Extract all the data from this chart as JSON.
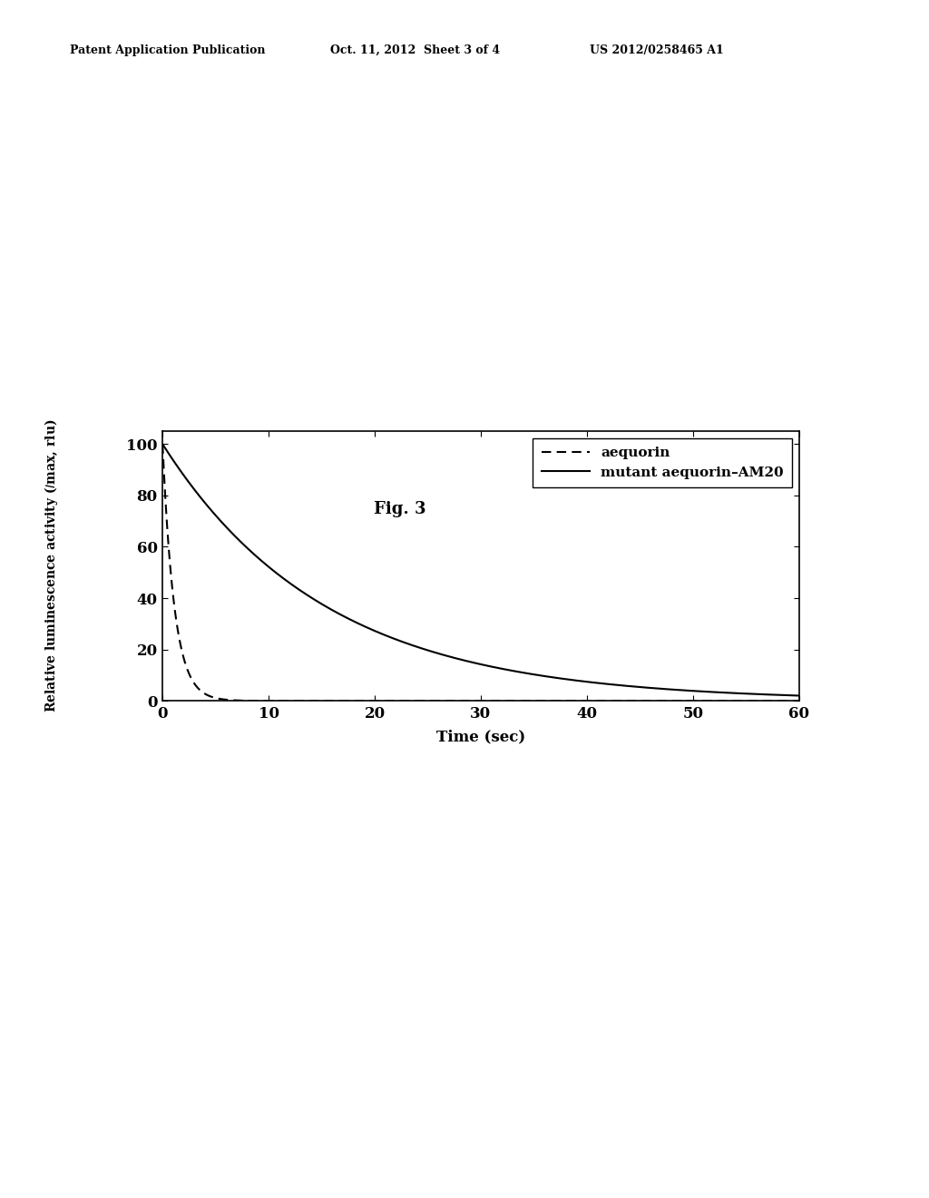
{
  "header_left": "Patent Application Publication",
  "header_mid": "Oct. 11, 2012  Sheet 3 of 4",
  "header_right": "US 2012/0258465 A1",
  "fig_label": "Fig. 3",
  "xlabel": "Time (sec)",
  "ylabel": "Relative luminescence activity (Imax, rlu)",
  "xlim": [
    0,
    60
  ],
  "ylim": [
    0,
    105
  ],
  "xticks": [
    0,
    10,
    20,
    30,
    40,
    50,
    60
  ],
  "yticks": [
    0,
    20,
    40,
    60,
    80,
    100
  ],
  "legend_entry1": "aequorin",
  "legend_entry2": "mutant aequorin–AM20",
  "aequorin_decay": 0.9,
  "mutant_decay": 0.065,
  "background_color": "#ffffff",
  "line_color": "#000000",
  "header_fontsize": 9,
  "fig_label_fontsize": 13,
  "axis_fontsize": 12,
  "tick_fontsize": 12,
  "legend_fontsize": 11,
  "ylabel_fontsize": 10
}
